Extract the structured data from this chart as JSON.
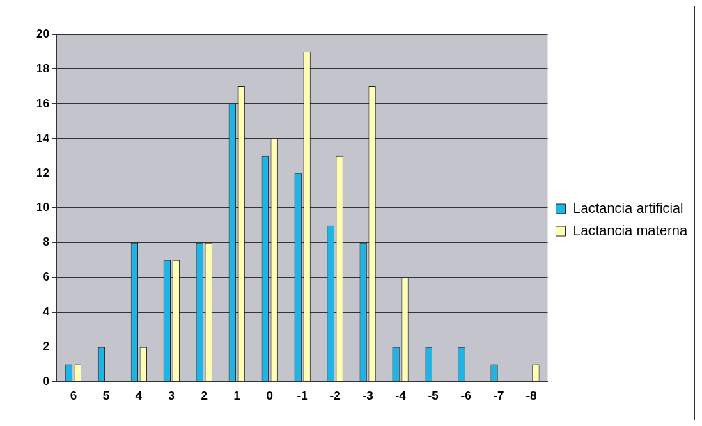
{
  "chart_data": {
    "type": "bar",
    "categories": [
      "6",
      "5",
      "4",
      "3",
      "2",
      "1",
      "0",
      "-1",
      "-2",
      "-3",
      "-4",
      "-5",
      "-6",
      "-7",
      "-8"
    ],
    "series": [
      {
        "name": "Lactancia artificial",
        "color": "#1eb4e6",
        "values": [
          1,
          2,
          8,
          7,
          8,
          16,
          13,
          12,
          9,
          8,
          2,
          2,
          2,
          1,
          0
        ]
      },
      {
        "name": "Lactancia materna",
        "color": "#ffffb4",
        "values": [
          1,
          0,
          2,
          7,
          8,
          17,
          14,
          19,
          13,
          17,
          6,
          0,
          0,
          0,
          1
        ]
      }
    ],
    "ylim": [
      0,
      20
    ],
    "yticks": [
      0,
      2,
      4,
      6,
      8,
      10,
      12,
      14,
      16,
      18,
      20
    ],
    "grid": "y",
    "legend": "right"
  }
}
